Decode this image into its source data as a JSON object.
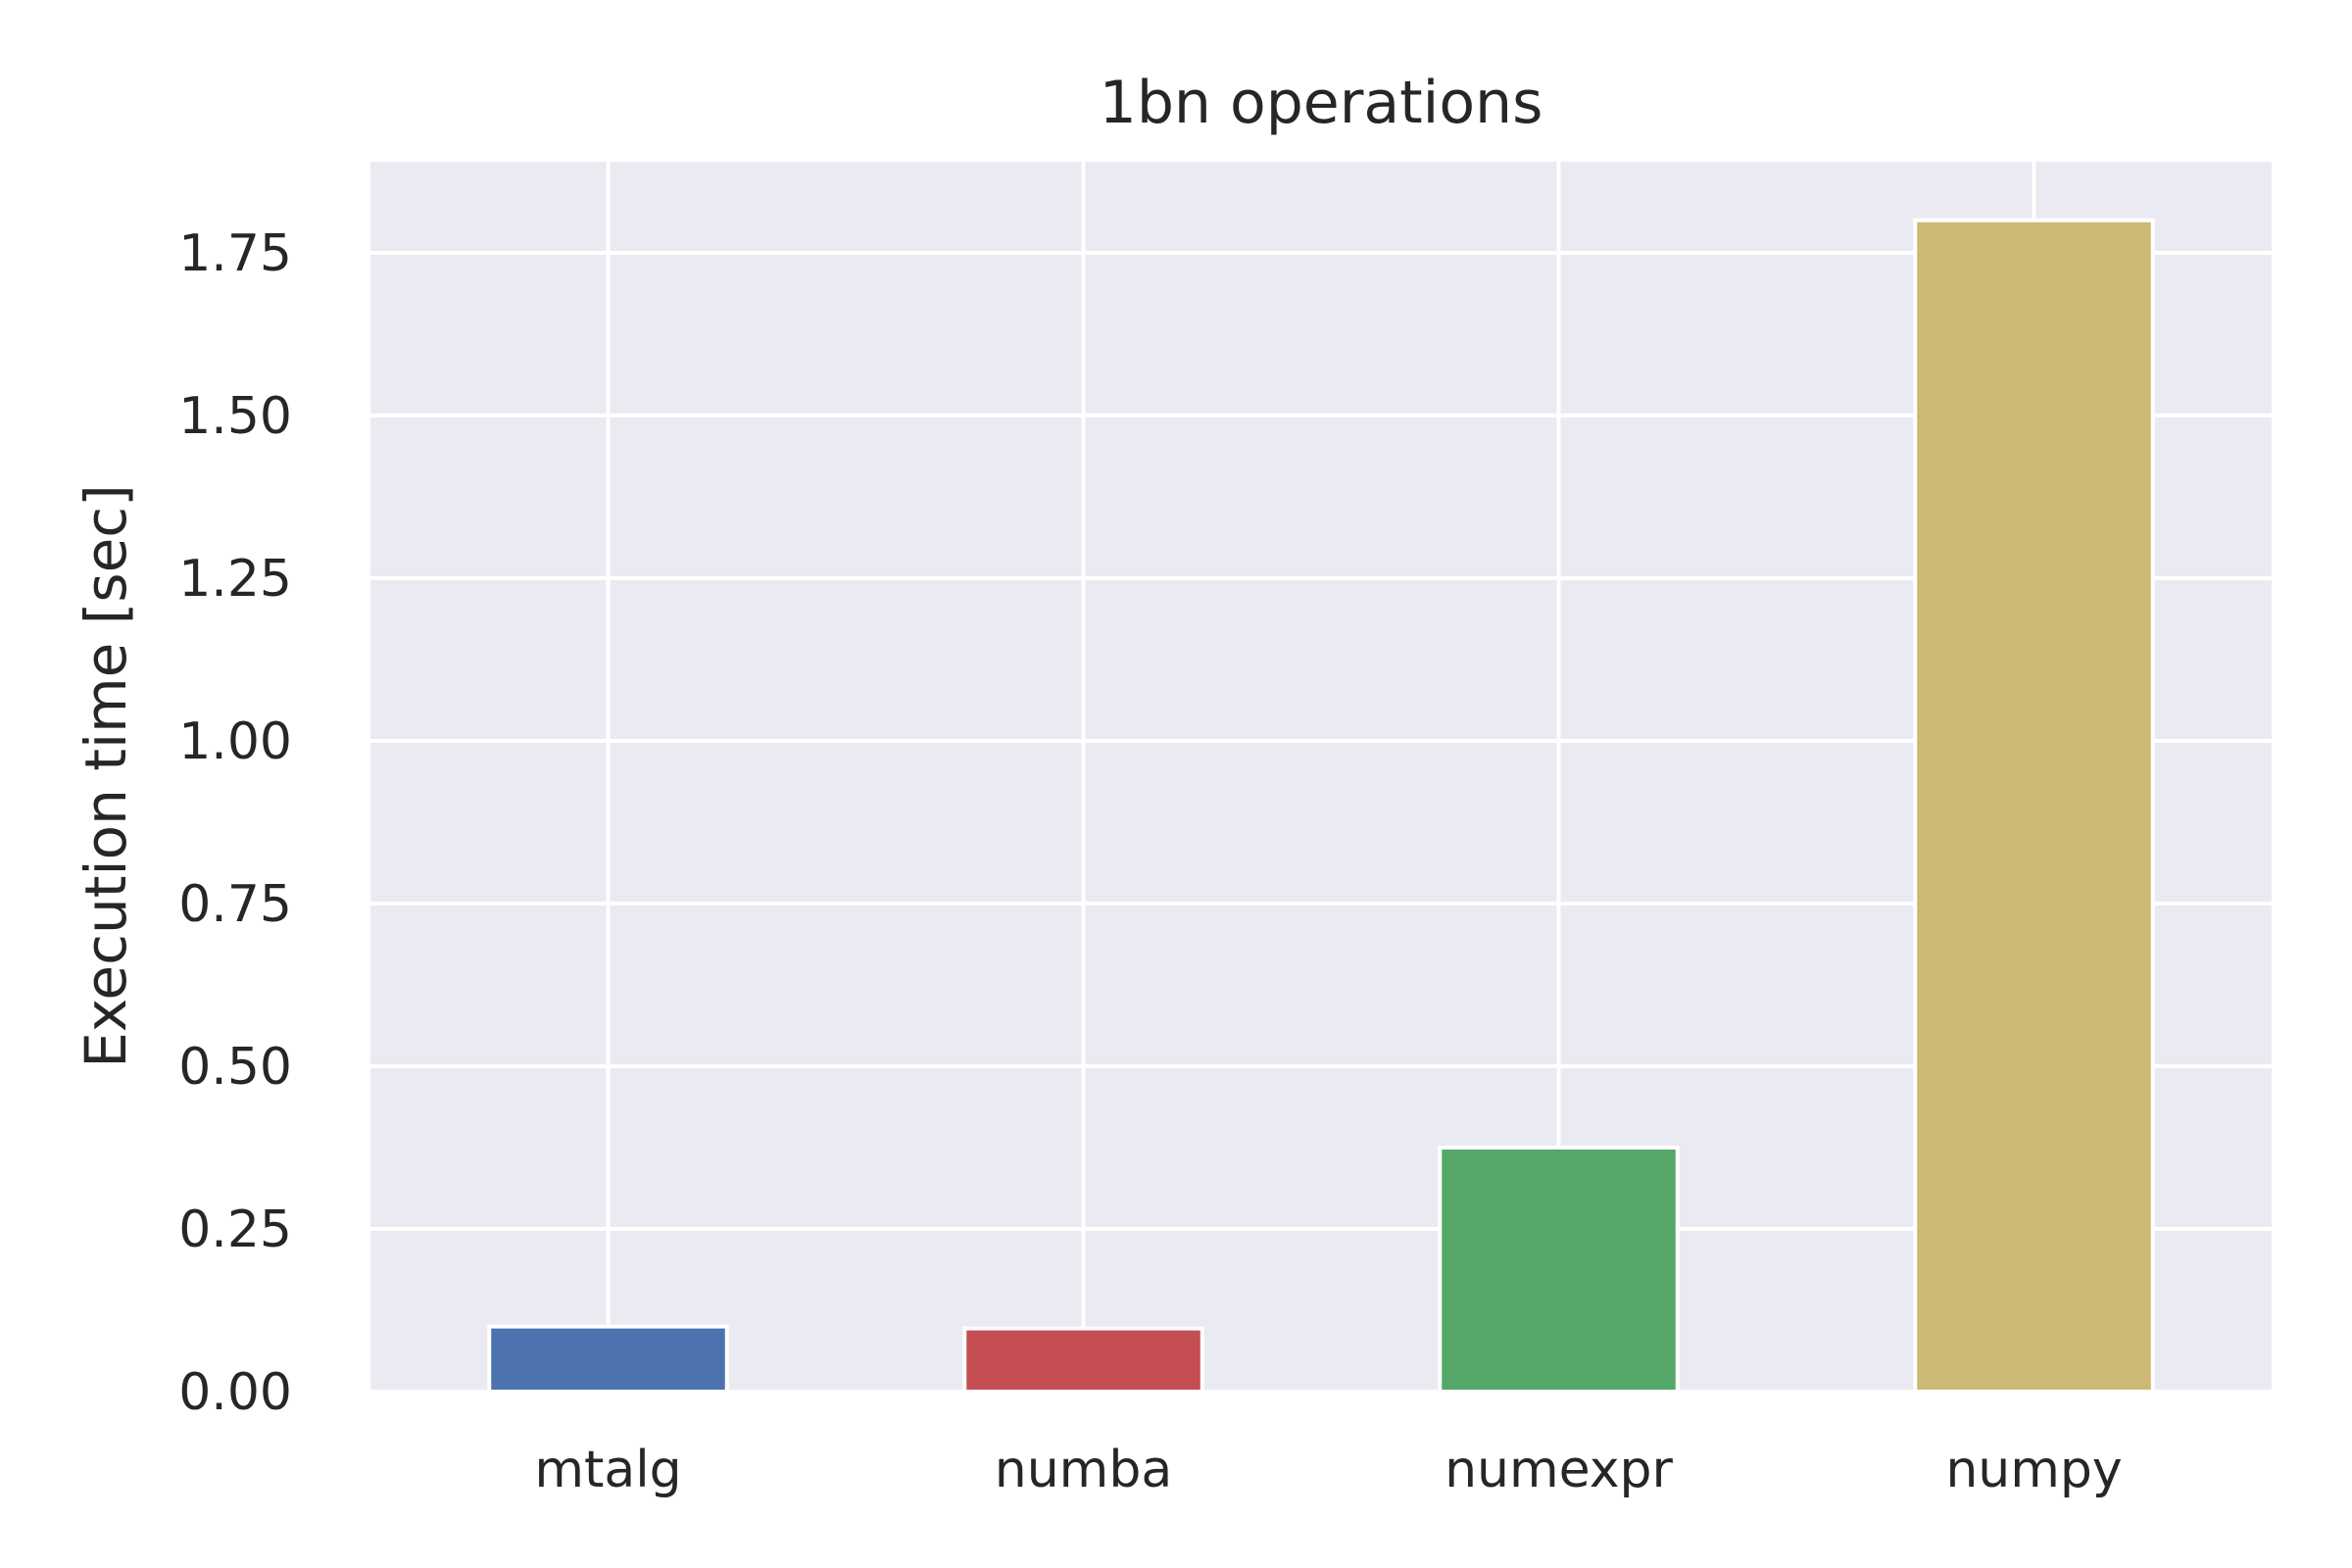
{
  "chart_data": {
    "type": "bar",
    "title": "1bn operations",
    "xlabel": "",
    "ylabel": "Execution time [sec]",
    "categories": [
      "mtalg",
      "numba",
      "numexpr",
      "numpy"
    ],
    "values": [
      0.1,
      0.097,
      0.375,
      1.8
    ],
    "colors": [
      "#4c72b0",
      "#c44e52",
      "#55a868",
      "#ccb974"
    ],
    "ylim": [
      0,
      1.89
    ],
    "yticks": [
      0.0,
      0.25,
      0.5,
      0.75,
      1.0,
      1.25,
      1.5,
      1.75
    ],
    "ytick_labels": [
      "0.00",
      "0.25",
      "0.50",
      "0.75",
      "1.00",
      "1.25",
      "1.50",
      "1.75"
    ],
    "grid": true,
    "plot_background": "#eaeaf2",
    "grid_color": "#ffffff"
  }
}
